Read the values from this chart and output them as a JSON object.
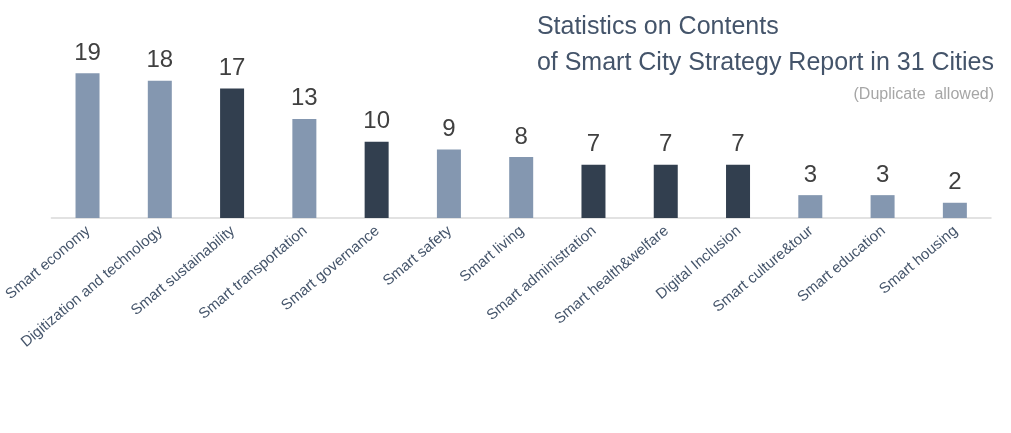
{
  "chart_data": {
    "type": "bar",
    "title": "Statistics on Contents\nof Smart City Strategy Report in 31 Cities",
    "subtitle": "(Duplicate  allowed)",
    "categories": [
      "Smart economy",
      "Digitization and technology",
      "Smart sustainability",
      "Smart transportation",
      "Smart governance",
      "Smart safety",
      "Smart living",
      "Smart administration",
      "Smart health&welfare",
      "Digital Inclusion",
      "Smart culture&tour",
      "Smart education",
      "Smart housing"
    ],
    "values": [
      19,
      18,
      17,
      13,
      10,
      9,
      8,
      7,
      7,
      7,
      3,
      3,
      2
    ],
    "colors": [
      "#8497b0",
      "#8497b0",
      "#323f4f",
      "#8497b0",
      "#323f4f",
      "#8497b0",
      "#8497b0",
      "#323f4f",
      "#323f4f",
      "#323f4f",
      "#8497b0",
      "#8497b0",
      "#8497b0"
    ],
    "data_labels": true,
    "grid": false
  }
}
